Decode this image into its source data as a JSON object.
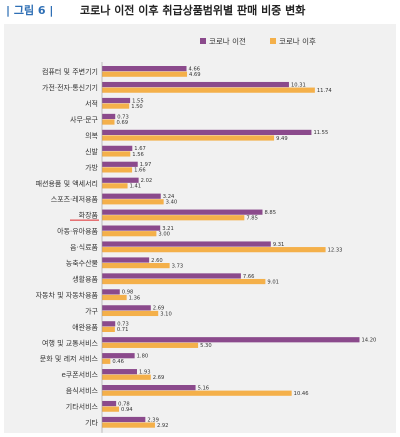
{
  "header": {
    "figure_label": "| 그림 6 |",
    "title": "코로나 이전 이후 취급상품범위별 판매 비중 변화"
  },
  "chart_data": {
    "type": "bar",
    "orientation": "horizontal",
    "title": "",
    "xlabel": "",
    "ylabel": "",
    "xlim": [
      0,
      15
    ],
    "grid": false,
    "legend": "top-right",
    "highlighted_category": "화장품",
    "categories": [
      "컴퓨터 및 주변기기",
      "가전·전자·통신기기",
      "서적",
      "사무·문구",
      "의복",
      "신발",
      "가방",
      "패션용품 및 액세서리",
      "스포츠·레저용품",
      "화장품",
      "아동·유아용품",
      "음·식료품",
      "농축수산물",
      "생활용품",
      "자동차 및 자동차용품",
      "가구",
      "애완용품",
      "여행 및 교통서비스",
      "문화 및 레저 서비스",
      "e쿠폰서비스",
      "음식서비스",
      "기타서비스",
      "기타"
    ],
    "series": [
      {
        "name": "코로나 이전",
        "color": "#8b4a8c",
        "values": [
          4.66,
          10.31,
          1.55,
          0.73,
          11.55,
          1.67,
          1.97,
          2.02,
          3.24,
          8.85,
          3.21,
          9.31,
          2.6,
          7.66,
          0.98,
          2.69,
          0.73,
          14.2,
          1.8,
          1.93,
          5.16,
          0.78,
          2.39
        ]
      },
      {
        "name": "코로나 이후",
        "color": "#f4b04a",
        "values": [
          4.69,
          11.74,
          1.5,
          0.69,
          9.49,
          1.56,
          1.66,
          1.41,
          3.4,
          7.85,
          3.0,
          12.33,
          3.73,
          9.01,
          1.36,
          3.1,
          0.71,
          5.3,
          0.46,
          2.69,
          10.46,
          0.94,
          2.92
        ]
      }
    ]
  }
}
